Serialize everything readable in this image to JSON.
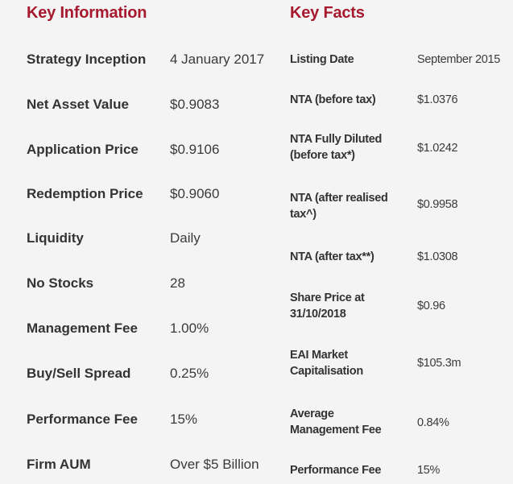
{
  "key_information": {
    "heading": "Key Information",
    "rows": [
      {
        "label": "Strategy Inception",
        "value": "4 January 2017"
      },
      {
        "label": "Net Asset Value",
        "value": "$0.9083"
      },
      {
        "label": "Application Price",
        "value": "$0.9106"
      },
      {
        "label": "Redemption Price",
        "value": "$0.9060"
      },
      {
        "label": "Liquidity",
        "value": "Daily"
      },
      {
        "label": "No Stocks",
        "value": "28"
      },
      {
        "label": "Management Fee",
        "value": "1.00%"
      },
      {
        "label": "Buy/Sell Spread",
        "value": "0.25%"
      },
      {
        "label": "Performance Fee",
        "value": "15%"
      },
      {
        "label": "Firm AUM",
        "value": "Over $5 Billion"
      }
    ]
  },
  "key_facts": {
    "heading": "Key Facts",
    "rows": [
      {
        "label_lines": [
          "Listing Date"
        ],
        "value": "September 2015"
      },
      {
        "label_lines": [
          "NTA (before tax)"
        ],
        "value": "$1.0376"
      },
      {
        "label_lines": [
          "NTA Fully Diluted",
          "(before tax*)"
        ],
        "value": "$1.0242"
      },
      {
        "label_lines": [
          "NTA (after realised",
          "tax^)"
        ],
        "value": "$0.9958"
      },
      {
        "label_lines": [
          "NTA (after tax**)"
        ],
        "value": "$1.0308"
      },
      {
        "label_lines": [
          "Share Price at",
          "31/10/2018"
        ],
        "value": "$0.96"
      },
      {
        "label_lines": [
          "EAI Market",
          "Capitalisation"
        ],
        "value": "$105.3m"
      },
      {
        "label_lines": [
          "Average",
          "Management Fee"
        ],
        "value": "0.84%"
      },
      {
        "label_lines": [
          "Performance Fee"
        ],
        "value": "15%"
      }
    ]
  }
}
